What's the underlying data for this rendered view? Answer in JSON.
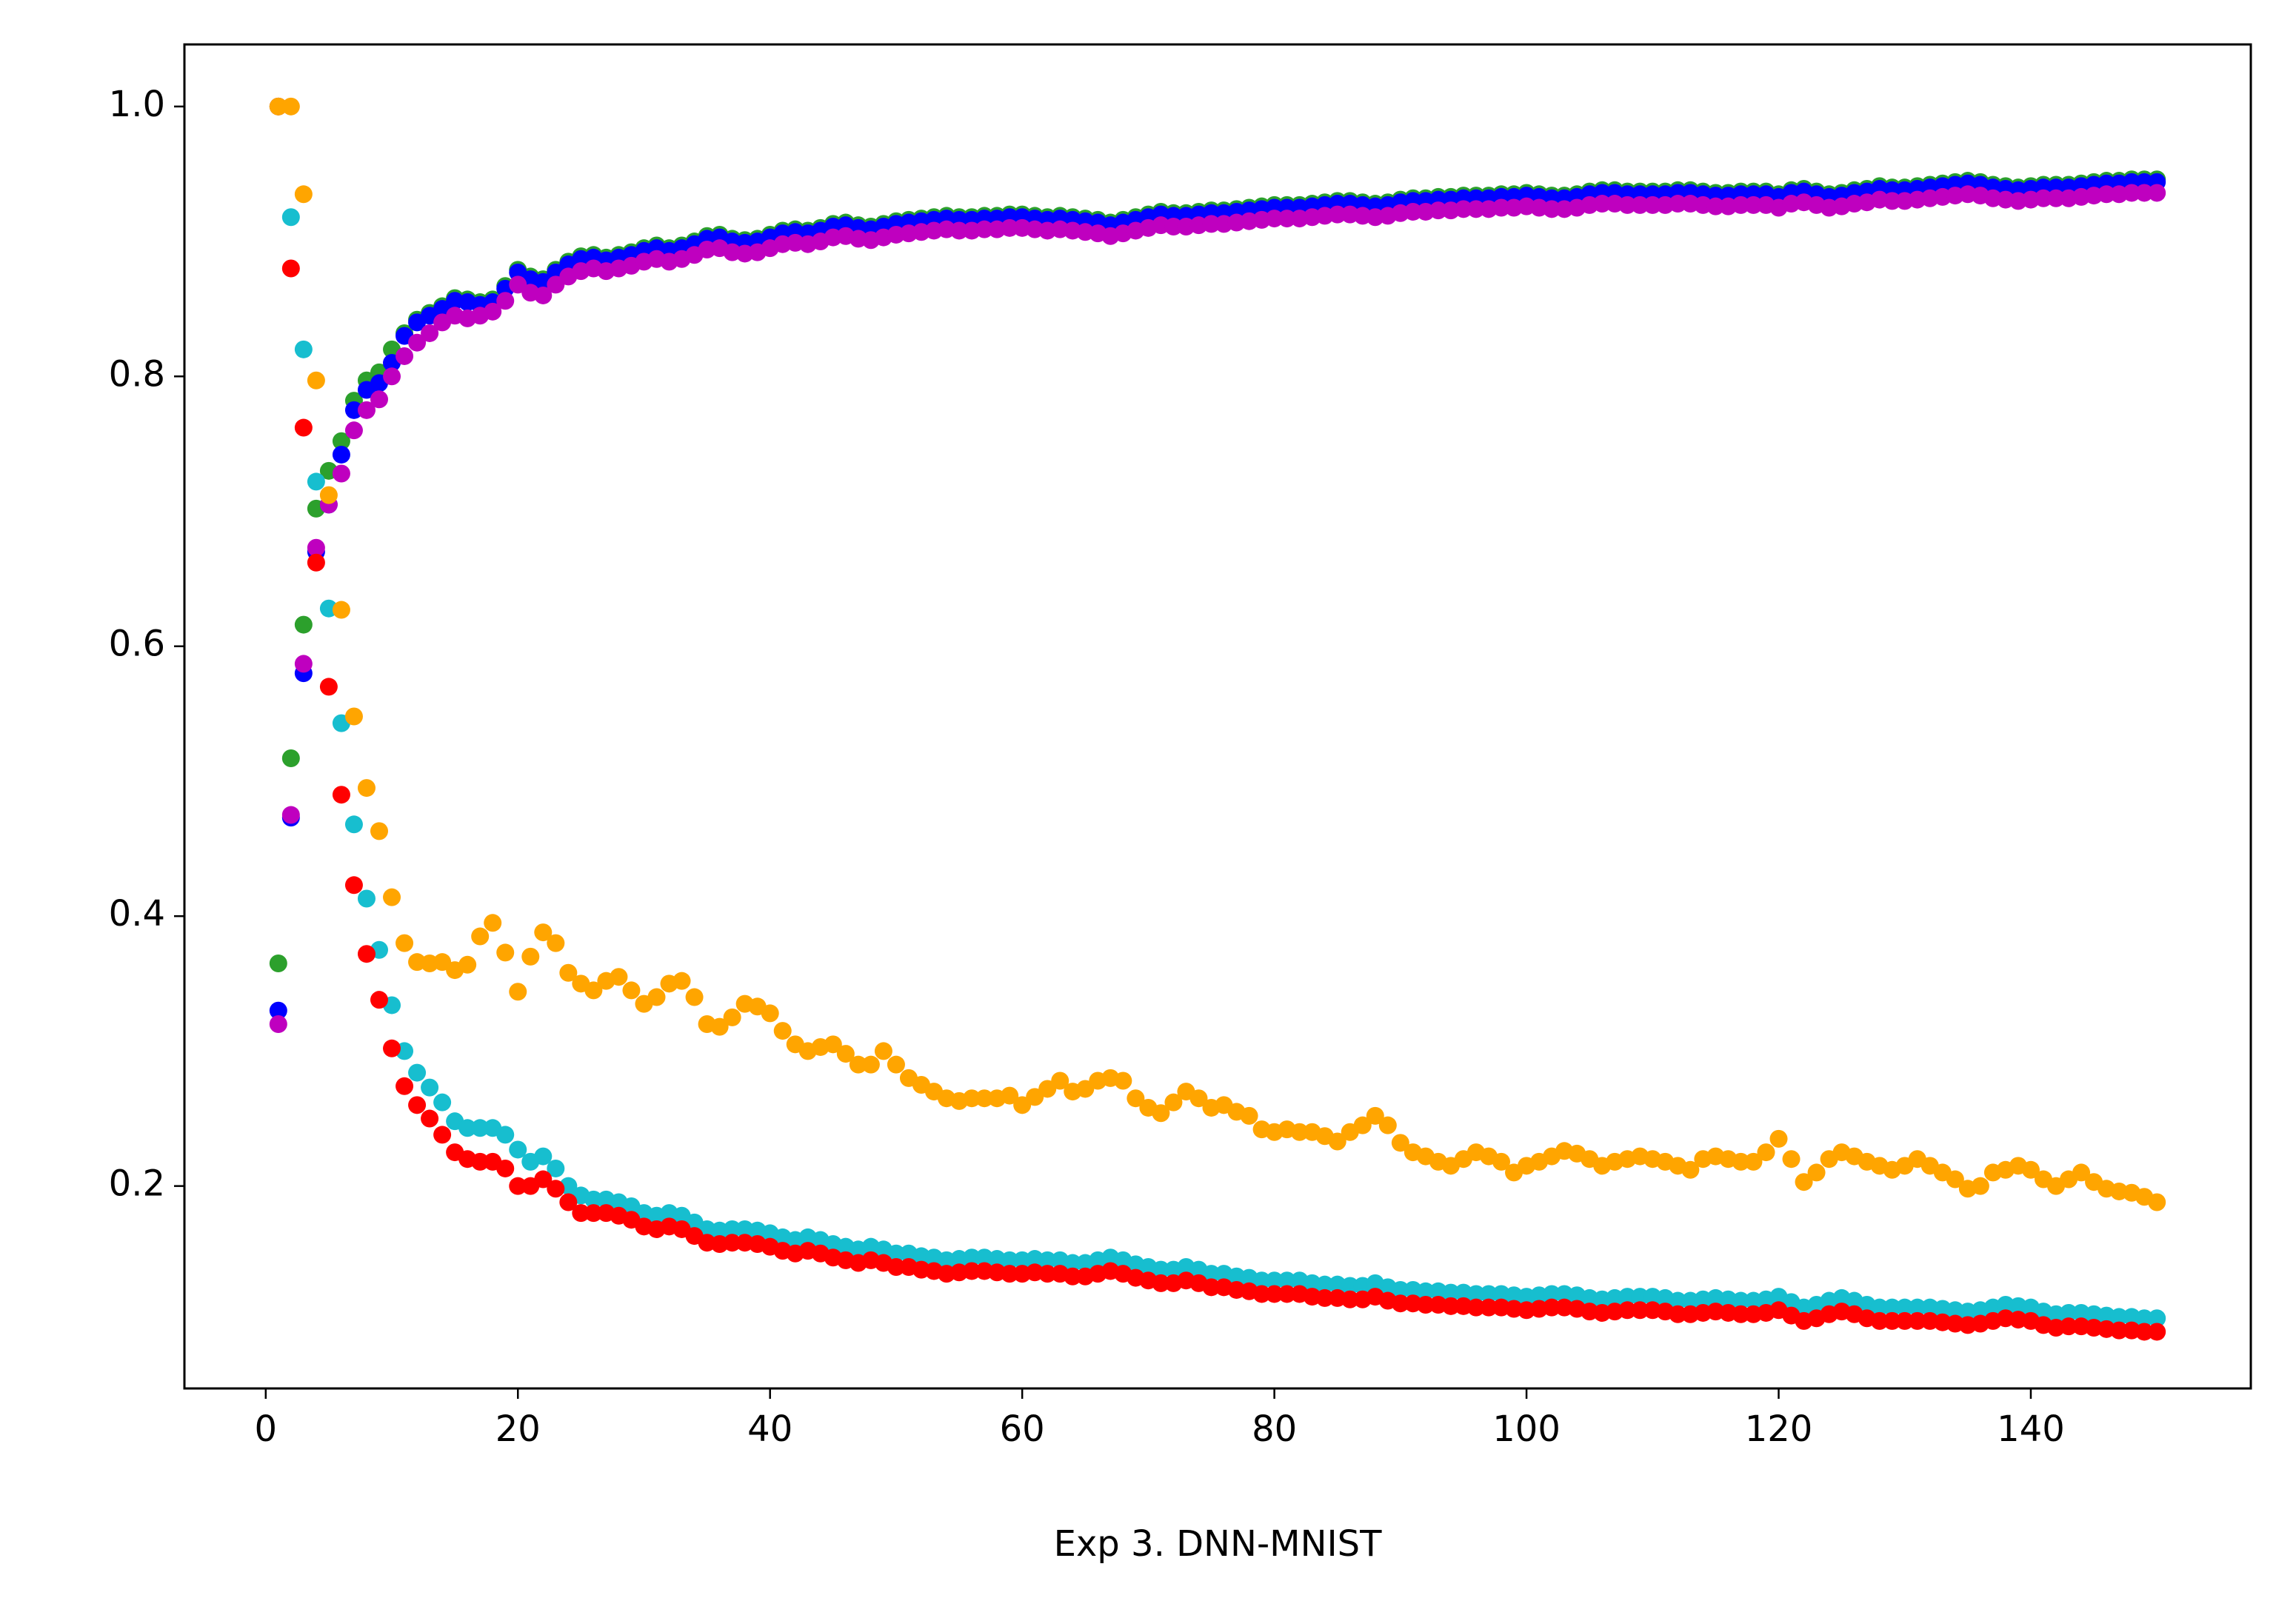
{
  "chart_data": {
    "type": "scatter",
    "xlabel": "Exp 3. DNN-MNIST",
    "xlim": [
      -6.45,
      157.45
    ],
    "ylim": [
      0.05,
      1.046
    ],
    "xticks": [
      0,
      20,
      40,
      60,
      80,
      100,
      120,
      140
    ],
    "yticks": [
      0.2,
      0.4,
      0.6,
      0.8,
      {
        "value": 1,
        "label": "1.0"
      }
    ],
    "grid": false,
    "x": [
      1,
      2,
      3,
      4,
      5,
      6,
      7,
      8,
      9,
      10,
      11,
      12,
      13,
      14,
      15,
      16,
      17,
      18,
      19,
      20,
      21,
      22,
      23,
      24,
      25,
      26,
      27,
      28,
      29,
      30,
      31,
      32,
      33,
      34,
      35,
      36,
      37,
      38,
      39,
      40,
      41,
      42,
      43,
      44,
      45,
      46,
      47,
      48,
      49,
      50,
      51,
      52,
      53,
      54,
      55,
      56,
      57,
      58,
      59,
      60,
      61,
      62,
      63,
      64,
      65,
      66,
      67,
      68,
      69,
      70,
      71,
      72,
      73,
      74,
      75,
      76,
      77,
      78,
      79,
      80,
      81,
      82,
      83,
      84,
      85,
      86,
      87,
      88,
      89,
      90,
      91,
      92,
      93,
      94,
      95,
      96,
      97,
      98,
      99,
      100,
      101,
      102,
      103,
      104,
      105,
      106,
      107,
      108,
      109,
      110,
      111,
      112,
      113,
      114,
      115,
      116,
      117,
      118,
      119,
      120,
      121,
      122,
      123,
      124,
      125,
      126,
      127,
      128,
      129,
      130,
      131,
      132,
      133,
      134,
      135,
      136,
      137,
      138,
      139,
      140,
      141,
      142,
      143,
      144,
      145,
      146,
      147,
      148,
      149,
      150
    ],
    "series": [
      {
        "color": "#2ca02c",
        "values": [
          0.365,
          0.517,
          0.616,
          0.702,
          0.73,
          0.752,
          0.782,
          0.797,
          0.803,
          0.82,
          0.832,
          0.842,
          0.847,
          0.852,
          0.858,
          0.857,
          0.855,
          0.857,
          0.867,
          0.879,
          0.874,
          0.872,
          0.879,
          0.885,
          0.889,
          0.89,
          0.888,
          0.89,
          0.892,
          0.895,
          0.897,
          0.895,
          0.897,
          0.9,
          0.904,
          0.905,
          0.902,
          0.901,
          0.902,
          0.905,
          0.908,
          0.909,
          0.908,
          0.91,
          0.913,
          0.914,
          0.912,
          0.911,
          0.913,
          0.915,
          0.916,
          0.917,
          0.918,
          0.919,
          0.918,
          0.918,
          0.919,
          0.919,
          0.92,
          0.92,
          0.919,
          0.918,
          0.919,
          0.918,
          0.917,
          0.916,
          0.914,
          0.916,
          0.918,
          0.92,
          0.922,
          0.921,
          0.921,
          0.922,
          0.923,
          0.923,
          0.924,
          0.925,
          0.926,
          0.927,
          0.927,
          0.927,
          0.928,
          0.929,
          0.93,
          0.93,
          0.929,
          0.928,
          0.929,
          0.931,
          0.932,
          0.932,
          0.933,
          0.933,
          0.934,
          0.934,
          0.934,
          0.935,
          0.935,
          0.936,
          0.935,
          0.934,
          0.934,
          0.935,
          0.937,
          0.938,
          0.938,
          0.937,
          0.937,
          0.937,
          0.937,
          0.938,
          0.938,
          0.937,
          0.936,
          0.936,
          0.937,
          0.937,
          0.937,
          0.935,
          0.938,
          0.939,
          0.937,
          0.935,
          0.936,
          0.938,
          0.939,
          0.941,
          0.94,
          0.94,
          0.941,
          0.942,
          0.943,
          0.944,
          0.945,
          0.944,
          0.942,
          0.941,
          0.94,
          0.941,
          0.942,
          0.942,
          0.942,
          0.943,
          0.944,
          0.945,
          0.945,
          0.946,
          0.946,
          0.946
        ]
      },
      {
        "color": "#0000ff",
        "values": [
          0.33,
          0.473,
          0.58,
          0.67,
          0.705,
          0.742,
          0.775,
          0.79,
          0.795,
          0.81,
          0.83,
          0.84,
          0.845,
          0.85,
          0.856,
          0.855,
          0.853,
          0.855,
          0.865,
          0.877,
          0.872,
          0.87,
          0.877,
          0.883,
          0.887,
          0.888,
          0.886,
          0.888,
          0.89,
          0.893,
          0.895,
          0.893,
          0.895,
          0.898,
          0.902,
          0.903,
          0.9,
          0.899,
          0.9,
          0.903,
          0.906,
          0.907,
          0.906,
          0.908,
          0.911,
          0.912,
          0.91,
          0.909,
          0.911,
          0.913,
          0.914,
          0.915,
          0.916,
          0.917,
          0.916,
          0.916,
          0.917,
          0.917,
          0.918,
          0.918,
          0.917,
          0.916,
          0.917,
          0.916,
          0.915,
          0.914,
          0.912,
          0.914,
          0.916,
          0.918,
          0.92,
          0.919,
          0.919,
          0.92,
          0.921,
          0.921,
          0.922,
          0.923,
          0.924,
          0.925,
          0.925,
          0.925,
          0.926,
          0.927,
          0.928,
          0.928,
          0.927,
          0.926,
          0.927,
          0.929,
          0.93,
          0.93,
          0.931,
          0.931,
          0.932,
          0.932,
          0.932,
          0.933,
          0.933,
          0.934,
          0.933,
          0.932,
          0.932,
          0.933,
          0.935,
          0.936,
          0.936,
          0.935,
          0.935,
          0.935,
          0.935,
          0.936,
          0.936,
          0.935,
          0.934,
          0.934,
          0.935,
          0.935,
          0.935,
          0.933,
          0.936,
          0.937,
          0.935,
          0.933,
          0.934,
          0.936,
          0.937,
          0.939,
          0.938,
          0.938,
          0.939,
          0.94,
          0.941,
          0.942,
          0.943,
          0.942,
          0.94,
          0.939,
          0.938,
          0.939,
          0.94,
          0.94,
          0.94,
          0.941,
          0.942,
          0.943,
          0.943,
          0.944,
          0.944,
          0.944
        ]
      },
      {
        "color": "#bf00bf",
        "values": [
          0.32,
          0.475,
          0.587,
          0.673,
          0.705,
          0.728,
          0.76,
          0.775,
          0.783,
          0.8,
          0.815,
          0.825,
          0.832,
          0.84,
          0.845,
          0.843,
          0.845,
          0.848,
          0.856,
          0.868,
          0.862,
          0.86,
          0.868,
          0.874,
          0.878,
          0.88,
          0.878,
          0.88,
          0.882,
          0.885,
          0.887,
          0.885,
          0.887,
          0.89,
          0.894,
          0.895,
          0.892,
          0.891,
          0.892,
          0.895,
          0.898,
          0.899,
          0.898,
          0.9,
          0.903,
          0.904,
          0.902,
          0.901,
          0.903,
          0.905,
          0.906,
          0.907,
          0.908,
          0.909,
          0.908,
          0.908,
          0.909,
          0.909,
          0.91,
          0.91,
          0.909,
          0.908,
          0.909,
          0.908,
          0.907,
          0.906,
          0.904,
          0.906,
          0.908,
          0.91,
          0.912,
          0.911,
          0.911,
          0.912,
          0.913,
          0.913,
          0.914,
          0.915,
          0.916,
          0.917,
          0.917,
          0.917,
          0.918,
          0.919,
          0.92,
          0.92,
          0.919,
          0.918,
          0.919,
          0.921,
          0.922,
          0.922,
          0.923,
          0.923,
          0.924,
          0.924,
          0.924,
          0.925,
          0.925,
          0.926,
          0.925,
          0.924,
          0.924,
          0.925,
          0.927,
          0.928,
          0.928,
          0.927,
          0.927,
          0.927,
          0.927,
          0.928,
          0.928,
          0.927,
          0.926,
          0.926,
          0.927,
          0.927,
          0.927,
          0.925,
          0.928,
          0.929,
          0.927,
          0.925,
          0.926,
          0.928,
          0.929,
          0.931,
          0.93,
          0.93,
          0.931,
          0.932,
          0.933,
          0.934,
          0.935,
          0.934,
          0.932,
          0.931,
          0.93,
          0.931,
          0.932,
          0.932,
          0.932,
          0.933,
          0.934,
          0.935,
          0.935,
          0.936,
          0.936,
          0.936
        ]
      },
      {
        "color": "#17becf",
        "values": [
          1.0,
          0.918,
          0.82,
          0.722,
          0.628,
          0.543,
          0.468,
          0.413,
          0.375,
          0.334,
          0.3,
          0.284,
          0.273,
          0.262,
          0.248,
          0.243,
          0.243,
          0.243,
          0.238,
          0.227,
          0.218,
          0.222,
          0.213,
          0.2,
          0.193,
          0.19,
          0.19,
          0.188,
          0.185,
          0.18,
          0.178,
          0.18,
          0.178,
          0.173,
          0.168,
          0.167,
          0.168,
          0.168,
          0.167,
          0.165,
          0.162,
          0.16,
          0.162,
          0.16,
          0.157,
          0.155,
          0.153,
          0.155,
          0.153,
          0.15,
          0.15,
          0.148,
          0.147,
          0.145,
          0.146,
          0.147,
          0.147,
          0.146,
          0.145,
          0.145,
          0.146,
          0.145,
          0.145,
          0.143,
          0.143,
          0.145,
          0.147,
          0.145,
          0.142,
          0.14,
          0.138,
          0.138,
          0.14,
          0.138,
          0.135,
          0.135,
          0.133,
          0.132,
          0.13,
          0.13,
          0.13,
          0.13,
          0.128,
          0.127,
          0.127,
          0.126,
          0.126,
          0.128,
          0.125,
          0.123,
          0.123,
          0.122,
          0.122,
          0.121,
          0.121,
          0.12,
          0.12,
          0.12,
          0.119,
          0.118,
          0.119,
          0.12,
          0.12,
          0.119,
          0.117,
          0.116,
          0.117,
          0.118,
          0.118,
          0.118,
          0.117,
          0.115,
          0.115,
          0.116,
          0.117,
          0.116,
          0.115,
          0.115,
          0.116,
          0.118,
          0.114,
          0.11,
          0.112,
          0.115,
          0.117,
          0.115,
          0.112,
          0.11,
          0.11,
          0.11,
          0.11,
          0.11,
          0.109,
          0.108,
          0.107,
          0.108,
          0.11,
          0.112,
          0.111,
          0.11,
          0.107,
          0.105,
          0.106,
          0.106,
          0.105,
          0.104,
          0.103,
          0.103,
          0.102,
          0.102
        ]
      },
      {
        "color": "#ff0000",
        "values": [
          1.0,
          0.88,
          0.762,
          0.662,
          0.57,
          0.49,
          0.423,
          0.372,
          0.338,
          0.302,
          0.274,
          0.26,
          0.25,
          0.238,
          0.225,
          0.22,
          0.218,
          0.218,
          0.213,
          0.2,
          0.2,
          0.205,
          0.198,
          0.188,
          0.18,
          0.18,
          0.18,
          0.178,
          0.175,
          0.17,
          0.168,
          0.17,
          0.168,
          0.163,
          0.158,
          0.157,
          0.158,
          0.158,
          0.157,
          0.155,
          0.152,
          0.15,
          0.152,
          0.15,
          0.147,
          0.145,
          0.143,
          0.145,
          0.143,
          0.14,
          0.14,
          0.138,
          0.137,
          0.135,
          0.136,
          0.137,
          0.137,
          0.136,
          0.135,
          0.135,
          0.136,
          0.135,
          0.135,
          0.133,
          0.133,
          0.135,
          0.137,
          0.135,
          0.132,
          0.13,
          0.128,
          0.128,
          0.13,
          0.128,
          0.125,
          0.125,
          0.123,
          0.122,
          0.12,
          0.12,
          0.12,
          0.12,
          0.118,
          0.117,
          0.117,
          0.116,
          0.116,
          0.118,
          0.115,
          0.113,
          0.113,
          0.112,
          0.112,
          0.111,
          0.111,
          0.11,
          0.11,
          0.11,
          0.109,
          0.108,
          0.109,
          0.11,
          0.11,
          0.109,
          0.107,
          0.106,
          0.107,
          0.108,
          0.108,
          0.108,
          0.107,
          0.105,
          0.105,
          0.106,
          0.107,
          0.106,
          0.105,
          0.105,
          0.106,
          0.108,
          0.104,
          0.1,
          0.102,
          0.105,
          0.107,
          0.105,
          0.102,
          0.1,
          0.1,
          0.1,
          0.1,
          0.1,
          0.099,
          0.098,
          0.097,
          0.098,
          0.1,
          0.102,
          0.101,
          0.1,
          0.097,
          0.095,
          0.096,
          0.096,
          0.095,
          0.094,
          0.093,
          0.093,
          0.092,
          0.092
        ]
      },
      {
        "color": "#ffa500",
        "values": [
          1.0,
          1.0,
          0.935,
          0.797,
          0.712,
          0.627,
          0.548,
          0.495,
          0.463,
          0.414,
          0.38,
          0.366,
          0.365,
          0.366,
          0.36,
          0.364,
          0.385,
          0.395,
          0.373,
          0.344,
          0.37,
          0.388,
          0.38,
          0.358,
          0.35,
          0.345,
          0.352,
          0.355,
          0.345,
          0.335,
          0.34,
          0.35,
          0.352,
          0.34,
          0.32,
          0.318,
          0.325,
          0.335,
          0.333,
          0.328,
          0.315,
          0.305,
          0.3,
          0.303,
          0.305,
          0.298,
          0.29,
          0.29,
          0.3,
          0.29,
          0.28,
          0.275,
          0.27,
          0.265,
          0.263,
          0.265,
          0.265,
          0.265,
          0.267,
          0.26,
          0.266,
          0.272,
          0.278,
          0.27,
          0.272,
          0.278,
          0.28,
          0.278,
          0.265,
          0.258,
          0.254,
          0.262,
          0.27,
          0.265,
          0.258,
          0.26,
          0.255,
          0.252,
          0.242,
          0.24,
          0.242,
          0.24,
          0.24,
          0.237,
          0.233,
          0.24,
          0.245,
          0.252,
          0.245,
          0.232,
          0.225,
          0.222,
          0.218,
          0.215,
          0.22,
          0.225,
          0.222,
          0.218,
          0.21,
          0.215,
          0.218,
          0.222,
          0.226,
          0.224,
          0.22,
          0.215,
          0.218,
          0.22,
          0.222,
          0.22,
          0.218,
          0.215,
          0.212,
          0.22,
          0.222,
          0.22,
          0.218,
          0.218,
          0.225,
          0.235,
          0.22,
          0.203,
          0.21,
          0.22,
          0.225,
          0.222,
          0.218,
          0.215,
          0.212,
          0.215,
          0.22,
          0.215,
          0.21,
          0.205,
          0.198,
          0.2,
          0.21,
          0.212,
          0.215,
          0.212,
          0.205,
          0.2,
          0.205,
          0.21,
          0.203,
          0.198,
          0.196,
          0.195,
          0.192,
          0.188
        ]
      }
    ]
  }
}
